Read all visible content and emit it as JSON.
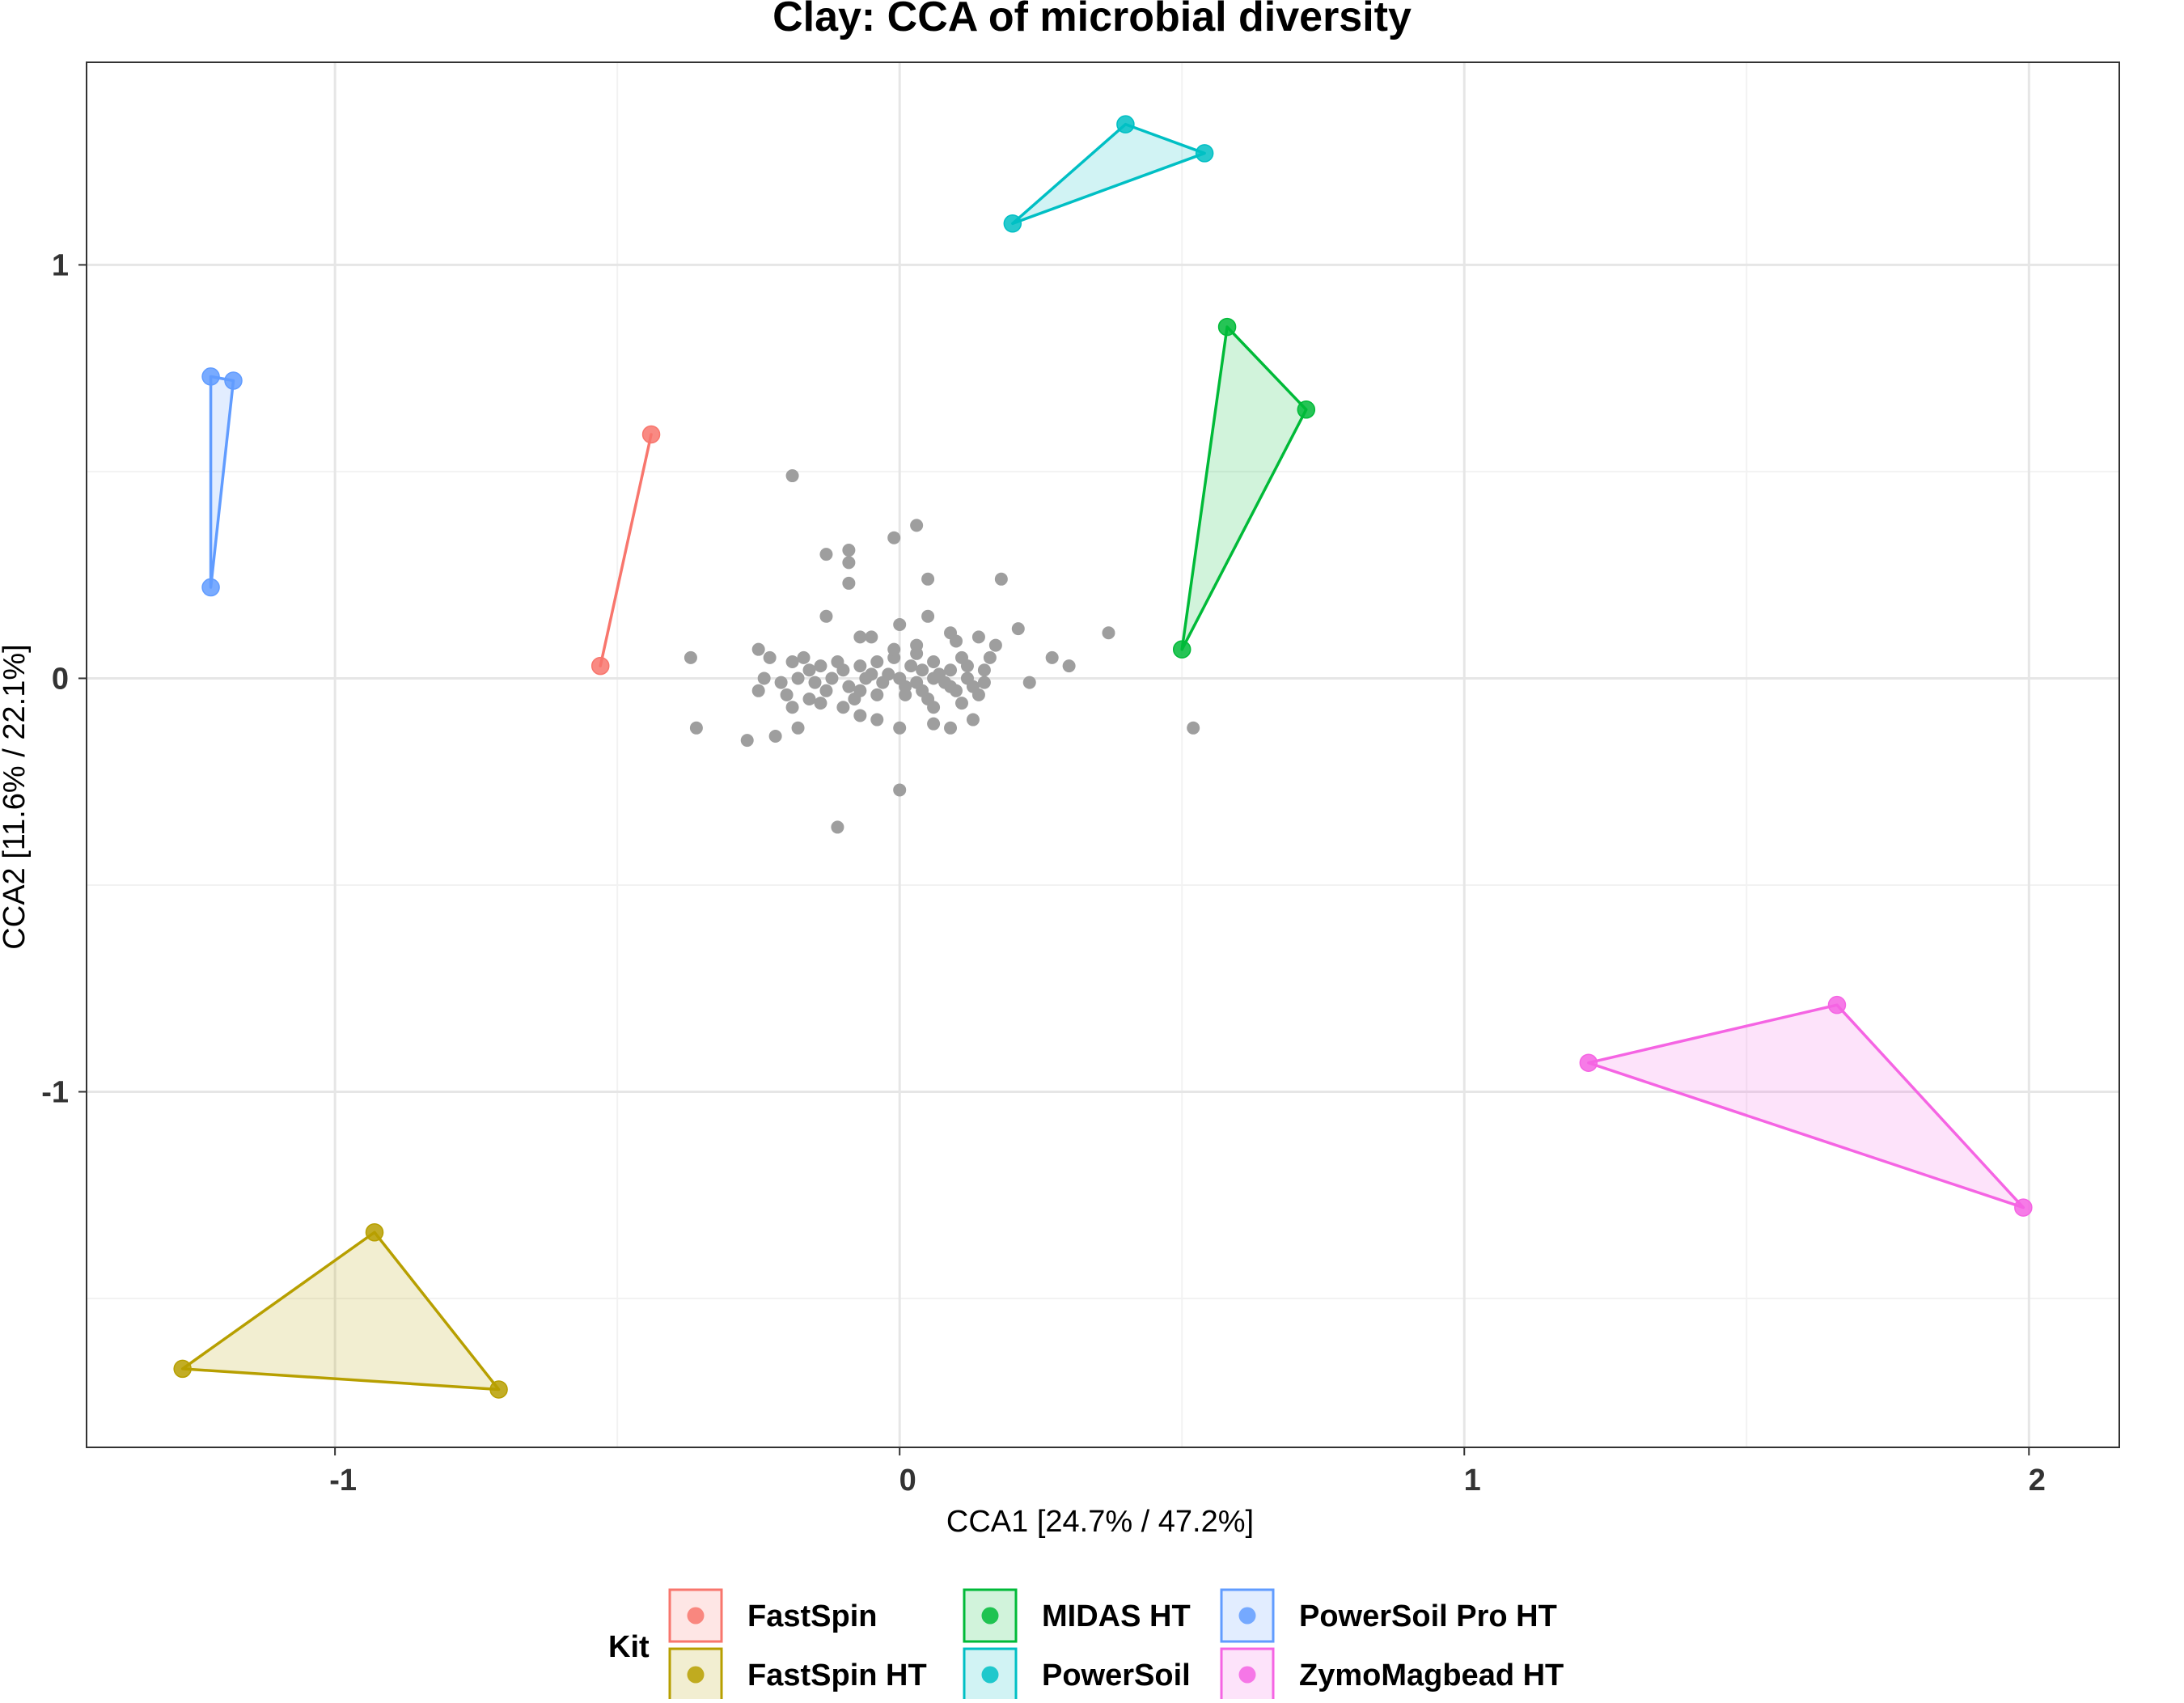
{
  "chart_data": {
    "type": "scatter",
    "title": "Clay: CCA of microbial diversity",
    "xlabel": "CCA1 [24.7% / 47.2%]",
    "ylabel": "CCA2 [11.6% / 22.1%]",
    "xlim": [
      -1.44,
      2.16
    ],
    "ylim": [
      -1.86,
      1.49
    ],
    "x_ticks": [
      -1,
      0,
      1,
      2
    ],
    "y_ticks": [
      1,
      0,
      -1
    ],
    "x_tick_labels": [
      "-1",
      "0",
      "1",
      "2"
    ],
    "y_tick_labels": [
      "1",
      "0",
      "-1"
    ],
    "grid": true,
    "legend": {
      "title": "Kit",
      "position": "bottom"
    },
    "groups": [
      {
        "name": "FastSpin",
        "color": "#F8766D",
        "points": [
          [
            -0.53,
            0.03
          ],
          [
            -0.44,
            0.59
          ]
        ]
      },
      {
        "name": "FastSpin HT",
        "color": "#B79F00",
        "points": [
          [
            -1.27,
            -1.67
          ],
          [
            -0.93,
            -1.34
          ],
          [
            -0.71,
            -1.72
          ]
        ]
      },
      {
        "name": "MIDAS HT",
        "color": "#00BA38",
        "points": [
          [
            0.58,
            0.85
          ],
          [
            0.72,
            0.65
          ],
          [
            0.5,
            0.07
          ]
        ]
      },
      {
        "name": "PowerSoil",
        "color": "#00BFC4",
        "points": [
          [
            0.2,
            1.1
          ],
          [
            0.4,
            1.34
          ],
          [
            0.54,
            1.27
          ]
        ]
      },
      {
        "name": "PowerSoil Pro HT",
        "color": "#619CFF",
        "points": [
          [
            -1.22,
            0.73
          ],
          [
            -1.18,
            0.72
          ],
          [
            -1.22,
            0.22
          ]
        ]
      },
      {
        "name": "ZymoMagbead HT",
        "color": "#F564E3",
        "points": [
          [
            1.22,
            -0.93
          ],
          [
            1.66,
            -0.79
          ],
          [
            1.99,
            -1.28
          ]
        ]
      }
    ],
    "species_color": "#9E9E9E",
    "species_points": [
      [
        -0.19,
        0.49
      ],
      [
        -0.01,
        0.34
      ],
      [
        0.03,
        0.37
      ],
      [
        -0.09,
        0.31
      ],
      [
        -0.13,
        0.3
      ],
      [
        -0.09,
        0.28
      ],
      [
        0.05,
        0.24
      ],
      [
        0.18,
        0.24
      ],
      [
        -0.09,
        0.23
      ],
      [
        -0.13,
        0.15
      ],
      [
        0.05,
        0.15
      ],
      [
        0.37,
        0.11
      ],
      [
        0.21,
        0.12
      ],
      [
        0.0,
        0.13
      ],
      [
        -0.05,
        0.1
      ],
      [
        -0.07,
        0.1
      ],
      [
        0.09,
        0.11
      ],
      [
        0.14,
        0.1
      ],
      [
        0.17,
        0.08
      ],
      [
        0.1,
        0.09
      ],
      [
        0.03,
        0.08
      ],
      [
        -0.25,
        0.07
      ],
      [
        -0.23,
        0.05
      ],
      [
        -0.37,
        0.05
      ],
      [
        -0.19,
        0.04
      ],
      [
        -0.17,
        0.05
      ],
      [
        -0.14,
        0.03
      ],
      [
        -0.1,
        0.02
      ],
      [
        -0.07,
        0.03
      ],
      [
        -0.04,
        0.04
      ],
      [
        -0.01,
        0.05
      ],
      [
        0.02,
        0.03
      ],
      [
        0.06,
        0.04
      ],
      [
        0.09,
        0.02
      ],
      [
        0.12,
        0.03
      ],
      [
        0.15,
        0.02
      ],
      [
        0.27,
        0.05
      ],
      [
        0.23,
        -0.01
      ],
      [
        0.3,
        0.03
      ],
      [
        -0.24,
        0.0
      ],
      [
        -0.21,
        -0.01
      ],
      [
        -0.18,
        0.0
      ],
      [
        -0.15,
        -0.01
      ],
      [
        -0.12,
        0.0
      ],
      [
        -0.09,
        -0.02
      ],
      [
        -0.06,
        0.0
      ],
      [
        -0.03,
        -0.01
      ],
      [
        0.0,
        0.0
      ],
      [
        0.03,
        -0.01
      ],
      [
        0.06,
        0.0
      ],
      [
        0.09,
        -0.02
      ],
      [
        0.12,
        0.0
      ],
      [
        0.15,
        -0.01
      ],
      [
        -0.25,
        -0.03
      ],
      [
        -0.2,
        -0.04
      ],
      [
        -0.16,
        -0.05
      ],
      [
        -0.13,
        -0.03
      ],
      [
        -0.08,
        -0.05
      ],
      [
        -0.04,
        -0.04
      ],
      [
        0.01,
        -0.04
      ],
      [
        0.05,
        -0.05
      ],
      [
        0.1,
        -0.03
      ],
      [
        0.14,
        -0.04
      ],
      [
        -0.19,
        -0.07
      ],
      [
        -0.14,
        -0.06
      ],
      [
        -0.1,
        -0.07
      ],
      [
        0.06,
        -0.07
      ],
      [
        0.11,
        -0.06
      ],
      [
        -0.07,
        -0.09
      ],
      [
        -0.04,
        -0.1
      ],
      [
        0.06,
        -0.11
      ],
      [
        0.09,
        -0.12
      ],
      [
        0.13,
        -0.1
      ],
      [
        0.0,
        -0.12
      ],
      [
        -0.18,
        -0.12
      ],
      [
        -0.22,
        -0.14
      ],
      [
        -0.27,
        -0.15
      ],
      [
        -0.36,
        -0.12
      ],
      [
        0.52,
        -0.12
      ],
      [
        0.0,
        -0.27
      ],
      [
        -0.11,
        -0.36
      ],
      [
        -0.02,
        0.01
      ],
      [
        0.04,
        0.02
      ],
      [
        0.07,
        0.01
      ],
      [
        -0.05,
        0.01
      ],
      [
        0.01,
        -0.02
      ],
      [
        0.08,
        -0.01
      ],
      [
        -0.11,
        0.04
      ],
      [
        0.03,
        0.06
      ],
      [
        0.11,
        0.05
      ],
      [
        -0.16,
        0.02
      ],
      [
        0.13,
        -0.02
      ],
      [
        -0.01,
        0.07
      ],
      [
        0.04,
        -0.03
      ],
      [
        -0.07,
        -0.03
      ],
      [
        0.16,
        0.05
      ]
    ]
  }
}
